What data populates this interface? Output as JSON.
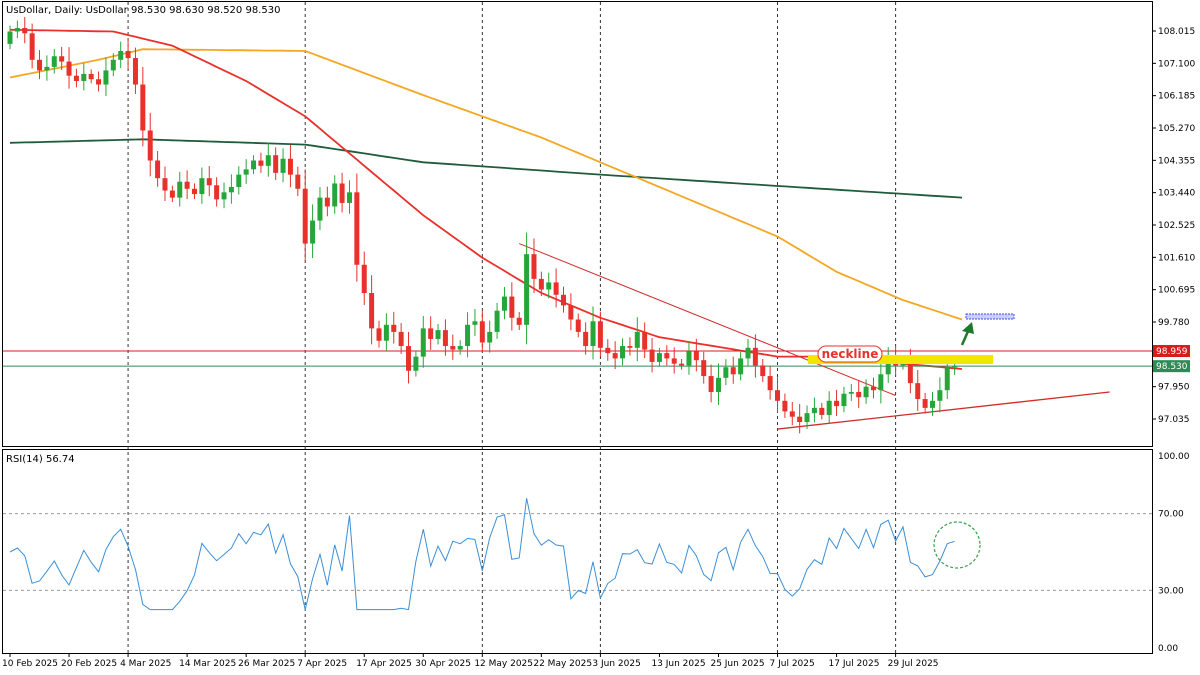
{
  "header": {
    "info": "UsDollar, Daily:  UsDollar  98.530 98.630 98.520 98.530"
  },
  "rsi": {
    "label": "RSI(14) 56.74",
    "levels": [
      100,
      70,
      30,
      0
    ],
    "level_labels": [
      "100.00",
      "70.00",
      "30.00",
      "0.00"
    ]
  },
  "annotations": {
    "neckline": "neckline"
  },
  "price_labels": {
    "resistance": "98.959",
    "current": "98.530"
  },
  "colors": {
    "bull": "#26a63a",
    "bear": "#e8312a",
    "ma_fast": "#e8312a",
    "ma_mid": "#f5a623",
    "ma_slow": "#1f5c3c",
    "resistance": "#d61c1c",
    "current": "#2e8b57",
    "highlight": "#f2e600",
    "rsi": "#3c8fd6",
    "arrow": "#1d7a2a",
    "trendline": "#d12c2c",
    "target_box": "#3b4fd6",
    "circle": "#3aa04a"
  },
  "chart_data": {
    "type": "candlestick",
    "instrument": "UsDollar",
    "timeframe": "Daily",
    "price_axis_ticks": [
      108.015,
      107.1,
      106.185,
      105.27,
      104.355,
      103.44,
      102.525,
      101.61,
      100.695,
      99.78,
      98.959,
      98.53,
      97.95,
      97.035
    ],
    "price_axis_labels": [
      "108.015",
      "107.100",
      "106.185",
      "105.270",
      "104.355",
      "103.440",
      "102.525",
      "101.610",
      "100.695",
      "99.780",
      "98.959",
      "98.530",
      "97.950",
      "97.035"
    ],
    "date_labels": [
      "10 Feb 2025",
      "20 Feb 2025",
      "4 Mar 2025",
      "14 Mar 2025",
      "26 Mar 2025",
      "7 Apr 2025",
      "17 Apr 2025",
      "30 Apr 2025",
      "12 May 2025",
      "22 May 2025",
      "3 Jun 2025",
      "13 Jun 2025",
      "25 Jun 2025",
      "7 Jul 2025",
      "17 Jul 2025",
      "29 Jul 2025"
    ],
    "date_label_indices": [
      0,
      8,
      16,
      24,
      32,
      40,
      48,
      56,
      64,
      72,
      80,
      88,
      96,
      104,
      112,
      120
    ],
    "vlines_at_index": [
      16,
      40,
      64,
      80,
      104,
      120
    ],
    "ylim": [
      96.3,
      108.8
    ],
    "closes": [
      108.0,
      108.1,
      107.95,
      107.2,
      106.9,
      107.0,
      107.3,
      107.15,
      106.75,
      106.6,
      106.8,
      106.65,
      106.5,
      106.9,
      107.2,
      107.45,
      107.25,
      106.5,
      105.2,
      104.35,
      103.85,
      103.5,
      103.3,
      103.75,
      103.55,
      103.4,
      103.85,
      103.65,
      103.25,
      103.45,
      103.6,
      103.95,
      104.1,
      104.35,
      104.2,
      104.5,
      104.0,
      104.4,
      103.95,
      103.55,
      102.0,
      102.65,
      103.3,
      103.05,
      103.7,
      103.15,
      103.45,
      101.4,
      100.6,
      99.6,
      99.25,
      99.7,
      99.5,
      99.1,
      98.4,
      98.8,
      99.6,
      99.3,
      99.55,
      99.1,
      99.0,
      99.1,
      99.7,
      99.8,
      99.2,
      99.5,
      100.1,
      100.5,
      99.9,
      99.7,
      101.7,
      101.0,
      100.7,
      100.9,
      100.55,
      100.25,
      99.85,
      99.5,
      99.1,
      99.8,
      99.05,
      98.9,
      98.75,
      99.1,
      99.05,
      99.5,
      99.0,
      98.65,
      98.9,
      98.75,
      98.6,
      98.55,
      98.95,
      98.7,
      98.25,
      97.8,
      98.2,
      98.5,
      98.3,
      98.75,
      99.05,
      98.55,
      98.25,
      97.85,
      97.55,
      97.25,
      97.1,
      96.95,
      97.2,
      97.35,
      97.15,
      97.55,
      97.4,
      97.75,
      97.8,
      97.65,
      97.95,
      97.85,
      98.3,
      98.8,
      98.55,
      98.7,
      98.05,
      97.6,
      97.35,
      97.55,
      97.85,
      98.5,
      98.53
    ],
    "series": [
      {
        "name": "MA fast",
        "approx_start": 108.05,
        "approx_end": 98.45
      },
      {
        "name": "MA mid",
        "approx_start": 106.7,
        "approx_end": 99.85
      },
      {
        "name": "MA slow",
        "approx_start": 104.85,
        "approx_end": 103.3
      },
      {
        "name": "RSI(14)",
        "last": 56.74
      }
    ],
    "levels": {
      "resistance": 98.959,
      "current": 98.53
    },
    "grid": false,
    "legend": "none"
  }
}
